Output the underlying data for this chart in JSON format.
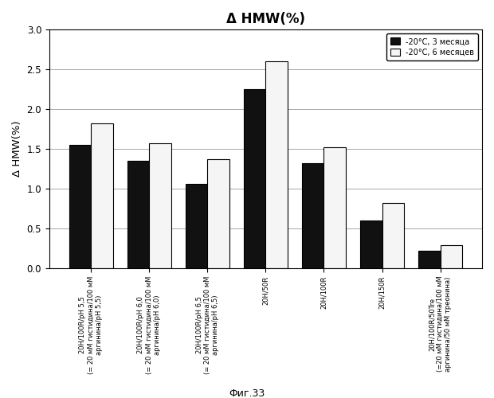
{
  "title": "Δ HMW(%)",
  "ylabel": "Δ HMW(%)",
  "categories": [
    "20H/100R/pH 5,5\n(= 20 мМ гистидина/100 мМ\nаргинина/pH 5,5)",
    "20H/100R/pH 6,0\n(= 20 мМ гистидина/100 мМ\nаргинина/pH 6,0)",
    "20H/100R/pH 6,5\n(= 20 мМ гистидина/100 мМ\nаргинина/pH 6,5)",
    "20H/50R",
    "20H/100R",
    "20H/150R",
    "20H/100R/50Tre\n(=20 мМ гистидина/100 мМ\nаргинина/50 мМ треонина)"
  ],
  "series": [
    {
      "label": "-20°С, 3 месяца",
      "color": "#111111",
      "values": [
        1.55,
        1.35,
        1.06,
        2.25,
        1.32,
        0.6,
        0.22
      ]
    },
    {
      "label": "-20°С, 6 месяцев",
      "color": "#f5f5f5",
      "values": [
        1.82,
        1.57,
        1.37,
        2.6,
        1.52,
        0.82,
        0.29
      ]
    }
  ],
  "ylim": [
    0.0,
    3.0
  ],
  "yticks": [
    0.0,
    0.5,
    1.0,
    1.5,
    2.0,
    2.5,
    3.0
  ],
  "figsize": [
    6.2,
    5.0
  ],
  "dpi": 100,
  "bar_width": 0.38,
  "caption": "Фиг.33",
  "background_color": "#ffffff",
  "grid_color": "#999999",
  "bar_edge_color": "#000000"
}
